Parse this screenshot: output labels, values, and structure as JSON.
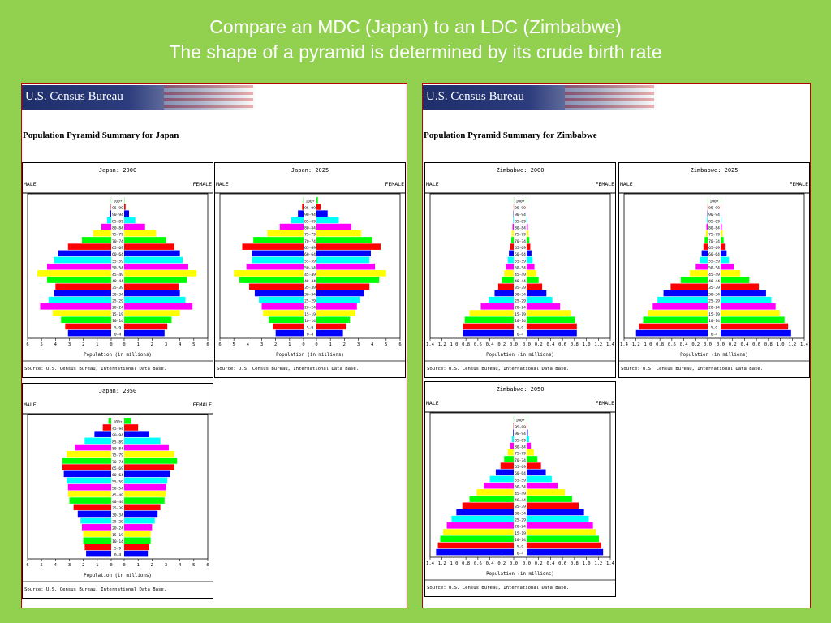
{
  "slide": {
    "title_line1": "Compare an MDC (Japan) to an LDC (Zimbabwe)",
    "title_line2": "The shape of a pyramid is determined by its crude birth rate"
  },
  "panels": [
    {
      "banner": "U.S. Census Bureau",
      "summary_title": "Population Pyramid Summary for Japan"
    },
    {
      "banner": "U.S. Census Bureau",
      "summary_title": "Population Pyramid Summary for Zimbabwe"
    }
  ],
  "colors": [
    "#0000ff",
    "#ff0000",
    "#00ff00",
    "#ffff00",
    "#ff00ff",
    "#00ffff"
  ],
  "chart_data": [
    {
      "type": "bar",
      "title": "Japan: 2000",
      "male_label": "MALE",
      "female_label": "FEMALE",
      "xlabel": "Population (in millions)",
      "source": "Source: U.S. Census Bureau, International Data Base.",
      "xlim": [
        0,
        6
      ],
      "xticks": [
        "6",
        "5",
        "4",
        "3",
        "2",
        "1",
        "0",
        "0",
        "1",
        "2",
        "3",
        "4",
        "5",
        "6"
      ],
      "age_groups": [
        "0-4",
        "5-9",
        "10-14",
        "15-19",
        "20-24",
        "25-29",
        "30-34",
        "35-39",
        "40-44",
        "45-49",
        "50-54",
        "55-59",
        "60-64",
        "65-69",
        "70-74",
        "75-79",
        "80-84",
        "85-89",
        "90-94",
        "95-99",
        "100+"
      ],
      "series": [
        {
          "name": "MALE",
          "values": [
            3.1,
            3.3,
            3.6,
            4.2,
            5.1,
            4.5,
            4.1,
            4.0,
            4.6,
            5.3,
            4.6,
            4.1,
            3.8,
            3.1,
            2.1,
            1.3,
            0.7,
            0.3,
            0.1,
            0.03,
            0.01
          ]
        },
        {
          "name": "FEMALE",
          "values": [
            2.9,
            3.1,
            3.4,
            4.0,
            4.9,
            4.4,
            4.0,
            3.9,
            4.5,
            5.2,
            4.6,
            4.2,
            4.0,
            3.6,
            3.0,
            2.3,
            1.5,
            0.8,
            0.35,
            0.1,
            0.02
          ]
        }
      ]
    },
    {
      "type": "bar",
      "title": "Japan: 2025",
      "male_label": "MALE",
      "female_label": "FEMALE",
      "xlabel": "Population (in millions)",
      "source": "Source: U.S. Census Bureau, International Data Base.",
      "xlim": [
        0,
        6
      ],
      "xticks": [
        "6",
        "5",
        "4",
        "3",
        "2",
        "1",
        "0",
        "0",
        "1",
        "2",
        "3",
        "4",
        "5",
        "6"
      ],
      "age_groups": [
        "0-4",
        "5-9",
        "10-14",
        "15-19",
        "20-24",
        "25-29",
        "30-34",
        "35-39",
        "40-44",
        "45-49",
        "50-54",
        "55-59",
        "60-64",
        "65-69",
        "70-74",
        "75-79",
        "80-84",
        "85-89",
        "90-94",
        "95-99",
        "100+"
      ],
      "series": [
        {
          "name": "MALE",
          "values": [
            2.0,
            2.2,
            2.5,
            2.9,
            3.0,
            3.2,
            3.5,
            3.9,
            4.6,
            5.0,
            4.1,
            3.7,
            3.7,
            4.4,
            3.6,
            2.6,
            1.7,
            0.9,
            0.4,
            0.1,
            0.02
          ]
        },
        {
          "name": "FEMALE",
          "values": [
            1.9,
            2.1,
            2.4,
            2.8,
            2.9,
            3.1,
            3.4,
            3.8,
            4.5,
            5.0,
            4.2,
            3.8,
            3.9,
            4.6,
            4.0,
            3.2,
            2.5,
            1.6,
            0.8,
            0.3,
            0.1
          ]
        }
      ]
    },
    {
      "type": "bar",
      "title": "Japan: 2050",
      "male_label": "MALE",
      "female_label": "FEMALE",
      "xlabel": "Population (in millions)",
      "source": "Source: U.S. Census Bureau, International Data Base.",
      "xlim": [
        0,
        6
      ],
      "xticks": [
        "6",
        "5",
        "4",
        "3",
        "2",
        "1",
        "0",
        "0",
        "1",
        "2",
        "3",
        "4",
        "5",
        "6"
      ],
      "age_groups": [
        "0-4",
        "5-9",
        "10-14",
        "15-19",
        "20-24",
        "25-29",
        "30-34",
        "35-39",
        "40-44",
        "45-49",
        "50-54",
        "55-59",
        "60-64",
        "65-69",
        "70-74",
        "75-79",
        "80-84",
        "85-89",
        "90-94",
        "95-99",
        "100+"
      ],
      "series": [
        {
          "name": "MALE",
          "values": [
            1.8,
            1.9,
            2.0,
            2.0,
            2.1,
            2.2,
            2.4,
            2.7,
            3.0,
            3.1,
            3.1,
            3.2,
            3.4,
            3.5,
            3.5,
            3.2,
            2.6,
            1.9,
            1.2,
            0.6,
            0.2
          ]
        },
        {
          "name": "FEMALE",
          "values": [
            1.7,
            1.8,
            1.9,
            1.9,
            2.0,
            2.2,
            2.4,
            2.6,
            2.9,
            3.0,
            3.0,
            3.1,
            3.3,
            3.6,
            3.8,
            3.6,
            3.2,
            2.6,
            1.8,
            1.0,
            0.5
          ]
        }
      ]
    },
    {
      "type": "bar",
      "title": "Zimbabwe: 2000",
      "male_label": "MALE",
      "female_label": "FEMALE",
      "xlabel": "Population (in millions)",
      "source": "Source: U.S. Census Bureau, International Data Base.",
      "xlim": [
        0,
        1.4
      ],
      "xticks": [
        "1.4",
        "1.2",
        "1.0",
        "0.8",
        "0.6",
        "0.4",
        "0.2",
        "0.0",
        "0.0",
        "0.2",
        "0.4",
        "0.6",
        "0.8",
        "1.0",
        "1.2",
        "1.4"
      ],
      "age_groups": [
        "0-4",
        "5-9",
        "10-14",
        "15-19",
        "20-24",
        "25-29",
        "30-34",
        "35-39",
        "40-44",
        "45-49",
        "50-54",
        "55-59",
        "60-64",
        "65-69",
        "70-74",
        "75-79",
        "80-84",
        "85-89",
        "90-94",
        "95-99",
        "100+"
      ],
      "series": [
        {
          "name": "MALE",
          "values": [
            0.85,
            0.85,
            0.82,
            0.74,
            0.55,
            0.42,
            0.32,
            0.26,
            0.2,
            0.16,
            0.13,
            0.1,
            0.08,
            0.06,
            0.04,
            0.03,
            0.02,
            0.01,
            0.005,
            0.002,
            0.001
          ]
        },
        {
          "name": "FEMALE",
          "values": [
            0.84,
            0.84,
            0.81,
            0.74,
            0.56,
            0.43,
            0.33,
            0.26,
            0.2,
            0.16,
            0.13,
            0.1,
            0.08,
            0.06,
            0.045,
            0.03,
            0.02,
            0.01,
            0.005,
            0.002,
            0.001
          ]
        }
      ]
    },
    {
      "type": "bar",
      "title": "Zimbabwe: 2025",
      "male_label": "MALE",
      "female_label": "FEMALE",
      "xlabel": "Population (in millions)",
      "source": "Source: U.S. Census Bureau, International Data Base.",
      "xlim": [
        0,
        1.4
      ],
      "xticks": [
        "1.4",
        "1.2",
        "1.0",
        "0.8",
        "0.6",
        "0.4",
        "0.2",
        "0.0",
        "0.0",
        "0.2",
        "0.4",
        "0.6",
        "0.8",
        "1.0",
        "1.2",
        "1.4"
      ],
      "age_groups": [
        "0-4",
        "5-9",
        "10-14",
        "15-19",
        "20-24",
        "25-29",
        "30-34",
        "35-39",
        "40-44",
        "45-49",
        "50-54",
        "55-59",
        "60-64",
        "65-69",
        "70-74",
        "75-79",
        "80-84",
        "85-89",
        "90-94",
        "95-99",
        "100+"
      ],
      "series": [
        {
          "name": "MALE",
          "values": [
            1.2,
            1.15,
            1.08,
            1.0,
            0.92,
            0.84,
            0.74,
            0.62,
            0.45,
            0.3,
            0.2,
            0.13,
            0.1,
            0.07,
            0.05,
            0.03,
            0.02,
            0.01,
            0.005,
            0.002,
            0.001
          ]
        },
        {
          "name": "FEMALE",
          "values": [
            1.18,
            1.13,
            1.07,
            0.99,
            0.92,
            0.85,
            0.76,
            0.64,
            0.48,
            0.33,
            0.22,
            0.14,
            0.1,
            0.07,
            0.05,
            0.035,
            0.02,
            0.01,
            0.005,
            0.002,
            0.001
          ]
        }
      ]
    },
    {
      "type": "bar",
      "title": "Zimbabwe: 2050",
      "male_label": "MALE",
      "female_label": "FEMALE",
      "xlabel": "Population (in millions)",
      "source": "Source: U.S. Census Bureau, International Data Base.",
      "xlim": [
        0,
        1.4
      ],
      "xticks": [
        "1.4",
        "1.2",
        "1.0",
        "0.8",
        "0.6",
        "0.4",
        "0.2",
        "0.0",
        "0.0",
        "0.2",
        "0.4",
        "0.6",
        "0.8",
        "1.0",
        "1.2",
        "1.4"
      ],
      "age_groups": [
        "0-4",
        "5-9",
        "10-14",
        "15-19",
        "20-24",
        "25-29",
        "30-34",
        "35-39",
        "40-44",
        "45-49",
        "50-54",
        "55-59",
        "60-64",
        "65-69",
        "70-74",
        "75-79",
        "80-84",
        "85-89",
        "90-94",
        "95-99",
        "100+"
      ],
      "series": [
        {
          "name": "MALE",
          "values": [
            1.3,
            1.27,
            1.23,
            1.18,
            1.12,
            1.04,
            0.96,
            0.86,
            0.74,
            0.62,
            0.5,
            0.4,
            0.3,
            0.22,
            0.16,
            0.1,
            0.06,
            0.03,
            0.01,
            0.005,
            0.002
          ]
        },
        {
          "name": "FEMALE",
          "values": [
            1.28,
            1.25,
            1.21,
            1.16,
            1.11,
            1.04,
            0.96,
            0.87,
            0.76,
            0.64,
            0.52,
            0.42,
            0.32,
            0.24,
            0.18,
            0.12,
            0.07,
            0.04,
            0.02,
            0.008,
            0.003
          ]
        }
      ]
    }
  ]
}
